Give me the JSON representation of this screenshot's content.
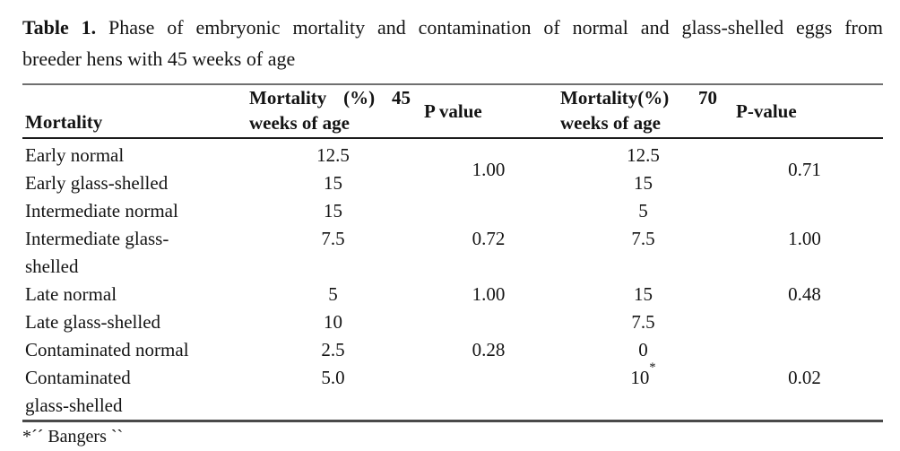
{
  "caption": {
    "label": "Table 1.",
    "line1_rest": "Phase of embryonic mortality and contamination of normal and glass-shelled eggs from",
    "line2": "breeder hens with 45 weeks of age"
  },
  "table": {
    "headers": {
      "col1": "Mortality",
      "col2_line1": "Mortality (%) 45",
      "col2_line2": "weeks of age",
      "col3": "P value",
      "col4_line1": "Mortality(%) 70",
      "col4_line2": "weeks of age",
      "col5": "P-value"
    },
    "rows": [
      {
        "label": "Early normal",
        "m45": "12.5",
        "p45": "1.00",
        "m70": "12.5",
        "p70": "0.71"
      },
      {
        "label": "Early glass-shelled",
        "m45": "15",
        "m70": "15"
      },
      {
        "label": "Intermediate normal",
        "m45": "15",
        "p45": "0.72",
        "m70": "5",
        "p70": "1.00"
      },
      {
        "label": "Intermediate glass-\nshelled",
        "m45": "7.5",
        "m70": "7.5"
      },
      {
        "label": "Late normal",
        "m45": "5",
        "p45": "1.00",
        "m70": "15",
        "p70": "0.48"
      },
      {
        "label": "Late glass-shelled",
        "m45": "10",
        "m70": "7.5"
      },
      {
        "label": "Contaminated normal",
        "m45": "2.5",
        "p45": "0.28",
        "m70": "0"
      },
      {
        "label": "Contaminated\nglass-shelled",
        "m45": "5.0",
        "m70": "10*",
        "p70": "0.02"
      }
    ],
    "footnote": "*´´ Bangers ``"
  },
  "colors": {
    "text": "#141414",
    "rule_top": "#6f6f6f",
    "rule_header_bottom": "#1b1b1b",
    "rule_bottom": "#4a4a4a",
    "background": "#ffffff"
  }
}
